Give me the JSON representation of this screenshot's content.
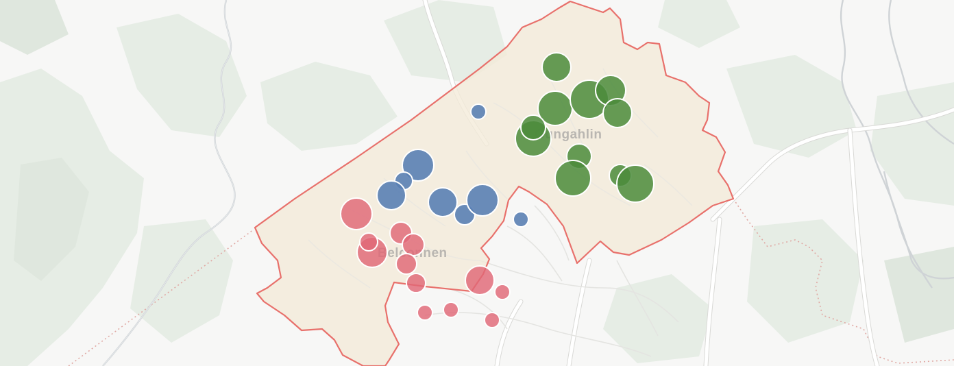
{
  "map": {
    "place_labels": [
      {
        "id": "gungahlin",
        "text": "Gungahlin"
      },
      {
        "id": "belconnen",
        "text": "Belconnen"
      }
    ],
    "colors": {
      "north_group": "#4b8b3b",
      "central_group": "#5a80b4",
      "south_group": "#e06876",
      "district_border": "#e8706b",
      "district_fill": "#f3ead8"
    },
    "markers": {
      "north_group": 14,
      "central_group": 10,
      "south_group": 15
    }
  }
}
